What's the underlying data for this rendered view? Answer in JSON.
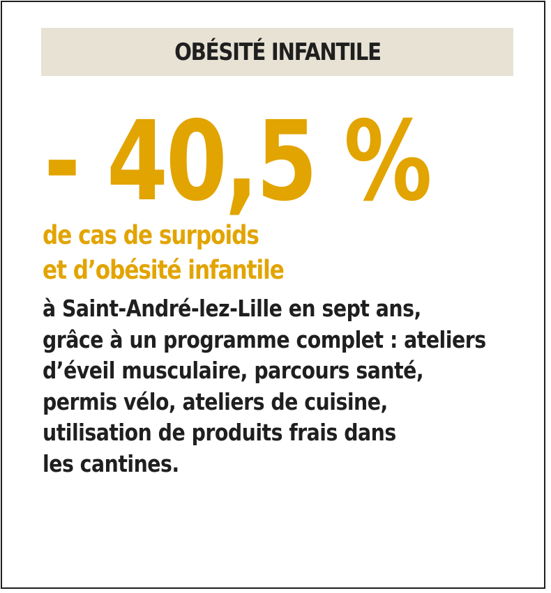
{
  "header": {
    "title": "OBÉSITÉ INFANTILE"
  },
  "stat": {
    "value": "- 40,5 %"
  },
  "subhead": {
    "lines": [
      "de cas de surpoids",
      "et d’obésité infantile"
    ]
  },
  "body": {
    "lines": [
      "à Saint-André-lez-Lille en sept ans,",
      "grâce à un programme complet : ateliers",
      "d’éveil musculaire, parcours santé,",
      "permis vélo, ateliers de cuisine,",
      "utilisation de produits frais dans",
      "les cantines."
    ]
  },
  "colors": {
    "accent": "#e2a400",
    "header_band": "#e8e2d5",
    "text": "#1f1f1f",
    "border": "#1e1e1e"
  }
}
